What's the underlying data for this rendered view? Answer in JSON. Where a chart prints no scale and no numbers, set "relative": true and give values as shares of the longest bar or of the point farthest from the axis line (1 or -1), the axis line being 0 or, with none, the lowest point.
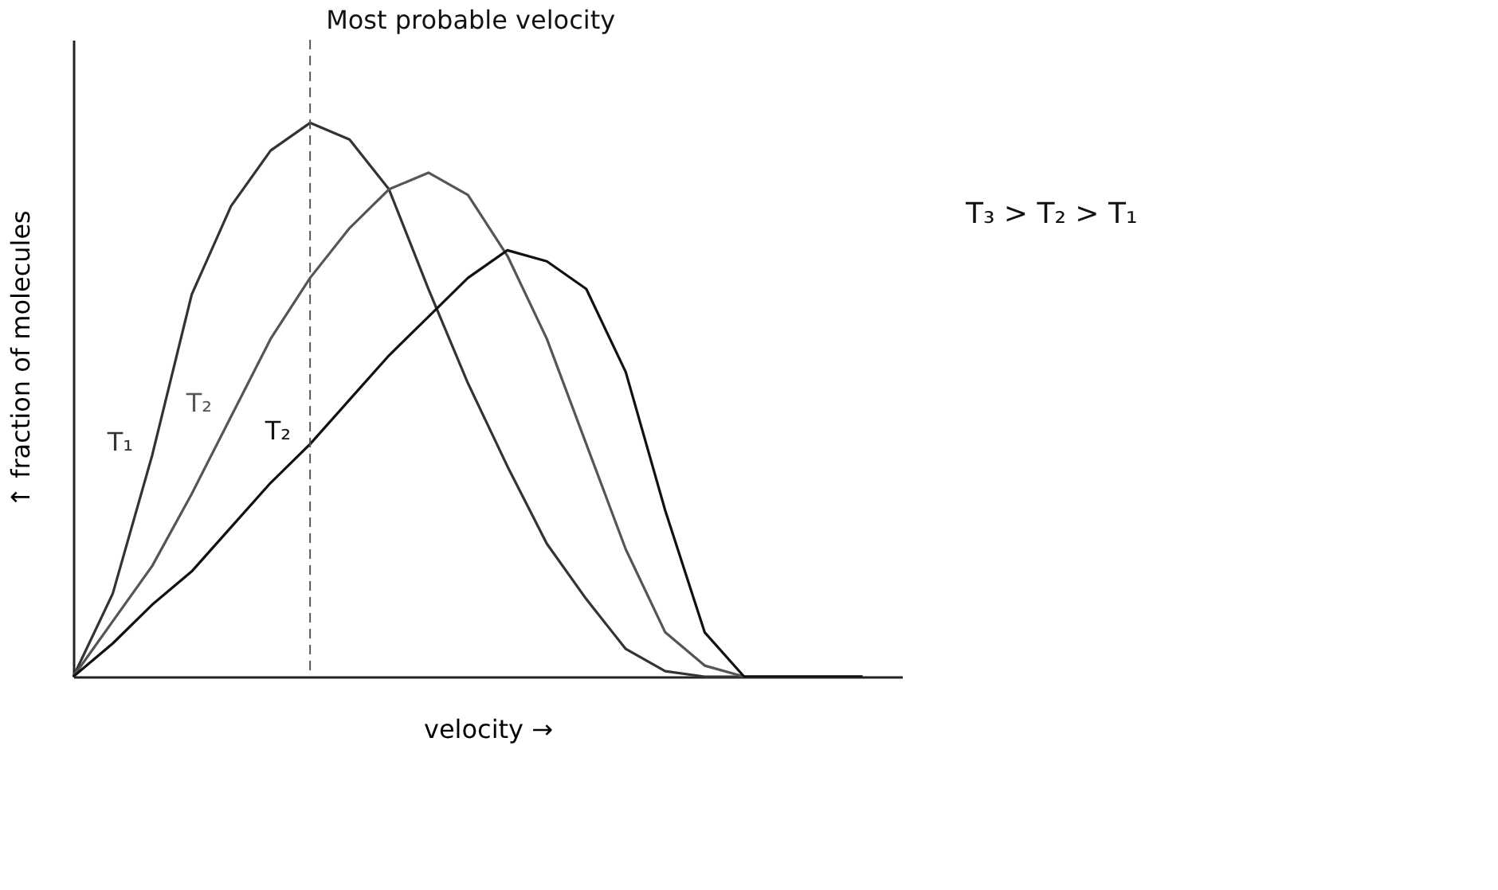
{
  "chart_data": {
    "type": "line",
    "relative": true,
    "xlabel": "velocity →",
    "ylabel": "↑ fraction of molecules",
    "marker": "none",
    "line_style": "solid",
    "categories": [
      null,
      null,
      null,
      null,
      null,
      null,
      null,
      null,
      null,
      null,
      null,
      null,
      null,
      null,
      null,
      null,
      null,
      null,
      null,
      null,
      null
    ],
    "series": [
      {
        "name": "T₁",
        "color": "#333333",
        "values": [
          0,
          0.15,
          0.4,
          0.69,
          0.85,
          0.95,
          1,
          0.97,
          0.88,
          0.7,
          0.53,
          0.38,
          0.24,
          0.14,
          0.05,
          0.01,
          0,
          0,
          0,
          0,
          0
        ]
      },
      {
        "name": "T₂",
        "color": "#555555",
        "values": [
          0,
          0.1,
          0.2,
          0.33,
          0.47,
          0.61,
          0.72,
          0.81,
          0.88,
          0.91,
          0.87,
          0.76,
          0.61,
          0.42,
          0.23,
          0.08,
          0.02,
          0,
          0,
          0,
          0
        ]
      },
      {
        "name": "T₂",
        "color": "#111111",
        "values": [
          0,
          0.06,
          0.13,
          0.19,
          0.27,
          0.35,
          0.42,
          0.5,
          0.58,
          0.65,
          0.72,
          0.77,
          0.75,
          0.7,
          0.55,
          0.3,
          0.08,
          0,
          0,
          0,
          0
        ]
      }
    ],
    "ref_lines": [
      {
        "axis": "x",
        "label": "Most probable velocity",
        "line_style": "dashed",
        "color": "#555555"
      }
    ],
    "annotations": [
      "T₃ > T₂ > T₁"
    ]
  }
}
